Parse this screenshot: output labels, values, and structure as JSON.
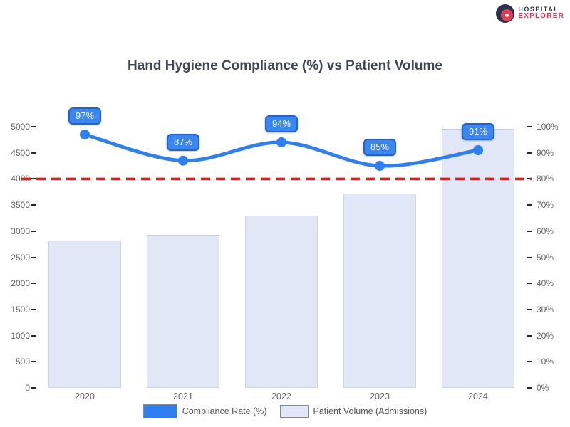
{
  "logo": {
    "line1": "HOSPITAL",
    "line2": "EXPLORER",
    "dark_color": "#2e3248",
    "accent_color": "#e23b52"
  },
  "title": "Hand Hygiene Compliance (%) vs Patient Volume",
  "chart_data": {
    "type": "combo-bar-line",
    "title": "Hand Hygiene Compliance (%) vs Patient Volume",
    "categories": [
      "2020",
      "2021",
      "2022",
      "2023",
      "2024"
    ],
    "series": [
      {
        "name": "Compliance Rate (%)",
        "type": "line",
        "axis": "right",
        "color": "#2e7ff0",
        "marker_color": "#2e7ff0",
        "values": [
          97,
          87,
          94,
          85,
          91
        ],
        "point_labels": [
          "97%",
          "87%",
          "94%",
          "85%",
          "91%"
        ]
      },
      {
        "name": "Patient Volume (Admissions)",
        "type": "bar",
        "axis": "left",
        "color": "#e2e7f8",
        "border_color": "#cfd4ea",
        "values": [
          2820,
          2930,
          3300,
          3720,
          4960
        ]
      }
    ],
    "target_line": {
      "axis": "right",
      "value": 80,
      "color": "#e51c1c",
      "style": "dashed"
    },
    "left_axis": {
      "min": 0,
      "max": 5000,
      "step": 500,
      "ticks": [
        "5000",
        "4500",
        "4000",
        "3500",
        "3000",
        "2500",
        "2000",
        "1500",
        "1000",
        "500",
        "0"
      ]
    },
    "right_axis": {
      "min": 0,
      "max": 100,
      "step": 10,
      "ticks": [
        "100%",
        "90%",
        "80%",
        "70%",
        "60%",
        "50%",
        "40%",
        "30%",
        "20%",
        "10%",
        "0%"
      ]
    },
    "legend_position": "bottom",
    "grid": false,
    "badge_fill": "#3a86f4",
    "badge_border": "#2165cc"
  }
}
